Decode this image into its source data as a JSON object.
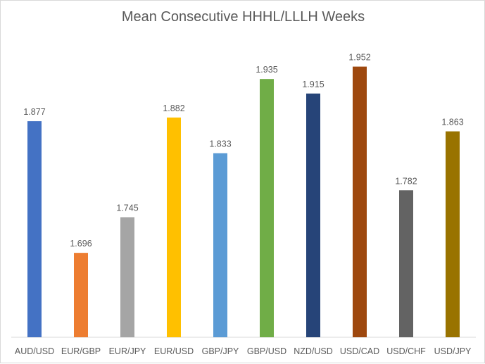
{
  "chart_data": {
    "type": "bar",
    "title": "Mean Consecutive HHHL/LLLH Weeks",
    "xlabel": "",
    "ylabel": "",
    "categories": [
      "AUD/USD",
      "EUR/GBP",
      "EUR/JPY",
      "EUR/USD",
      "GBP/JPY",
      "GBP/USD",
      "NZD/USD",
      "USD/CAD",
      "USD/CHF",
      "USD/JPY"
    ],
    "values": [
      1.877,
      1.696,
      1.745,
      1.882,
      1.833,
      1.935,
      1.915,
      1.952,
      1.782,
      1.863
    ],
    "data_labels": [
      "1.877",
      "1.696",
      "1.745",
      "1.882",
      "1.833",
      "1.935",
      "1.915",
      "1.952",
      "1.782",
      "1.863"
    ],
    "colors": [
      "#4472C4",
      "#ED7D31",
      "#A5A5A5",
      "#FFC000",
      "#5B9BD5",
      "#70AD47",
      "#264478",
      "#9E480E",
      "#636363",
      "#997300"
    ],
    "ylim": [
      1.58,
      1.97
    ],
    "grid": false,
    "legend": "none"
  }
}
